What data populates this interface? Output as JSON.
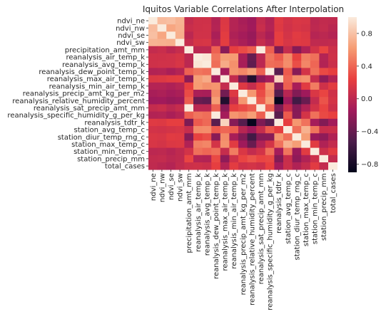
{
  "chart_data": {
    "type": "heatmap",
    "title": "Iquitos Variable Correlations After Interpolation",
    "variables": [
      "ndvi_ne",
      "ndvi_nw",
      "ndvi_se",
      "ndvi_sw",
      "precipitation_amt_mm",
      "reanalysis_air_temp_k",
      "reanalysis_avg_temp_k",
      "reanalysis_dew_point_temp_k",
      "reanalysis_max_air_temp_k",
      "reanalysis_min_air_temp_k",
      "reanalysis_precip_amt_kg_per_m2",
      "reanalysis_relative_humidity_percent",
      "reanalysis_sat_precip_amt_mm",
      "reanalysis_specific_humidity_g_per_kg",
      "reanalysis_tdtr_k",
      "station_avg_temp_c",
      "station_diur_temp_rng_c",
      "station_max_temp_c",
      "station_min_temp_c",
      "station_precip_mm",
      "total_cases"
    ],
    "matrix": [
      [
        1.0,
        0.77,
        0.79,
        0.73,
        0.04,
        0.1,
        0.1,
        -0.05,
        0.17,
        -0.04,
        -0.1,
        -0.15,
        0.04,
        -0.05,
        0.19,
        0.12,
        0.16,
        0.15,
        0.0,
        0.03,
        0.02
      ],
      [
        0.77,
        1.0,
        0.67,
        0.72,
        0.07,
        0.1,
        0.11,
        -0.04,
        0.18,
        -0.04,
        -0.08,
        -0.14,
        0.07,
        -0.04,
        0.18,
        0.11,
        0.15,
        0.13,
        0.01,
        0.04,
        -0.01
      ],
      [
        0.79,
        0.67,
        1.0,
        0.71,
        0.0,
        0.11,
        0.11,
        -0.09,
        0.21,
        -0.07,
        -0.12,
        -0.18,
        0.0,
        -0.09,
        0.23,
        0.13,
        0.2,
        0.17,
        -0.03,
        0.0,
        -0.04
      ],
      [
        0.73,
        0.72,
        0.71,
        1.0,
        0.05,
        0.14,
        0.15,
        -0.04,
        0.22,
        -0.03,
        -0.09,
        -0.16,
        0.05,
        -0.04,
        0.23,
        0.15,
        0.19,
        0.18,
        0.02,
        0.02,
        0.03
      ],
      [
        0.04,
        0.07,
        0.0,
        0.05,
        1.0,
        0.0,
        0.0,
        0.38,
        -0.24,
        0.23,
        0.29,
        0.36,
        1.0,
        0.37,
        -0.3,
        0.05,
        -0.26,
        -0.06,
        0.12,
        0.26,
        0.09
      ],
      [
        0.1,
        0.1,
        0.11,
        0.14,
        0.0,
        1.0,
        0.97,
        0.46,
        0.63,
        0.62,
        -0.09,
        -0.4,
        0.0,
        0.46,
        0.35,
        0.55,
        0.25,
        0.5,
        0.44,
        -0.04,
        0.1
      ],
      [
        0.1,
        0.11,
        0.11,
        0.15,
        0.0,
        0.97,
        1.0,
        0.43,
        0.69,
        0.57,
        -0.1,
        -0.43,
        0.0,
        0.43,
        0.41,
        0.56,
        0.3,
        0.53,
        0.4,
        -0.05,
        0.08
      ],
      [
        -0.05,
        -0.04,
        -0.09,
        -0.04,
        0.38,
        0.46,
        0.43,
        1.0,
        -0.12,
        0.59,
        0.54,
        0.63,
        0.38,
        1.0,
        -0.46,
        0.35,
        -0.25,
        0.13,
        0.44,
        0.28,
        0.23
      ],
      [
        0.17,
        0.18,
        0.21,
        0.22,
        -0.24,
        0.63,
        0.69,
        -0.12,
        1.0,
        0.04,
        -0.35,
        -0.74,
        -0.24,
        -0.12,
        0.89,
        0.4,
        0.55,
        0.58,
        0.05,
        -0.22,
        -0.05
      ],
      [
        -0.04,
        -0.04,
        -0.07,
        -0.03,
        0.23,
        0.62,
        0.57,
        0.59,
        0.04,
        1.0,
        0.18,
        0.05,
        0.23,
        0.59,
        -0.26,
        0.37,
        -0.1,
        0.2,
        0.49,
        0.1,
        0.21
      ],
      [
        -0.1,
        -0.08,
        -0.12,
        -0.09,
        0.29,
        -0.09,
        -0.1,
        0.54,
        -0.35,
        0.18,
        1.0,
        0.6,
        0.29,
        0.54,
        -0.48,
        -0.02,
        -0.28,
        -0.15,
        0.16,
        0.26,
        0.1
      ],
      [
        -0.15,
        -0.14,
        -0.18,
        -0.16,
        0.36,
        -0.4,
        -0.43,
        0.63,
        -0.74,
        0.05,
        0.6,
        1.0,
        0.36,
        0.63,
        -0.88,
        -0.15,
        -0.57,
        -0.39,
        0.04,
        0.32,
        0.13
      ],
      [
        0.04,
        0.07,
        0.0,
        0.05,
        1.0,
        0.0,
        0.0,
        0.38,
        -0.24,
        0.23,
        0.29,
        0.36,
        1.0,
        0.37,
        -0.3,
        0.05,
        -0.26,
        -0.06,
        0.12,
        0.26,
        0.09
      ],
      [
        -0.05,
        -0.04,
        -0.09,
        -0.04,
        0.37,
        0.46,
        0.43,
        1.0,
        -0.12,
        0.59,
        0.54,
        0.63,
        0.37,
        1.0,
        -0.46,
        0.35,
        -0.25,
        0.13,
        0.44,
        0.28,
        0.24
      ],
      [
        0.19,
        0.18,
        0.23,
        0.23,
        -0.3,
        0.35,
        0.41,
        -0.46,
        0.89,
        -0.26,
        -0.48,
        -0.88,
        -0.3,
        -0.46,
        1.0,
        0.23,
        0.6,
        0.45,
        -0.12,
        -0.28,
        -0.13
      ],
      [
        0.12,
        0.11,
        0.13,
        0.15,
        0.05,
        0.55,
        0.56,
        0.35,
        0.4,
        0.37,
        -0.02,
        -0.15,
        0.05,
        0.35,
        0.23,
        1.0,
        0.43,
        0.72,
        0.46,
        0.07,
        0.08
      ],
      [
        0.16,
        0.15,
        0.2,
        0.19,
        -0.26,
        0.25,
        0.3,
        -0.25,
        0.55,
        -0.1,
        -0.28,
        -0.57,
        -0.26,
        -0.25,
        0.6,
        0.43,
        1.0,
        0.63,
        -0.17,
        -0.22,
        -0.06
      ],
      [
        0.15,
        0.13,
        0.17,
        0.18,
        -0.06,
        0.5,
        0.53,
        0.13,
        0.58,
        0.2,
        -0.15,
        -0.39,
        -0.06,
        0.13,
        0.45,
        0.72,
        0.63,
        1.0,
        0.2,
        -0.06,
        0.04
      ],
      [
        0.0,
        0.01,
        -0.03,
        0.02,
        0.12,
        0.44,
        0.4,
        0.44,
        0.05,
        0.49,
        0.16,
        0.04,
        0.12,
        0.44,
        -0.12,
        0.46,
        -0.17,
        0.2,
        1.0,
        0.09,
        0.2
      ],
      [
        0.03,
        0.04,
        0.0,
        0.02,
        0.26,
        -0.04,
        -0.05,
        0.28,
        -0.22,
        0.1,
        0.26,
        0.32,
        0.26,
        0.28,
        -0.28,
        0.07,
        -0.22,
        -0.06,
        0.09,
        1.0,
        0.04
      ],
      [
        0.02,
        -0.01,
        -0.04,
        0.03,
        0.09,
        0.1,
        0.08,
        0.23,
        -0.05,
        0.21,
        0.1,
        0.13,
        0.09,
        0.24,
        -0.13,
        0.08,
        -0.06,
        0.04,
        0.2,
        0.04,
        1.0
      ]
    ],
    "vmin": -0.9,
    "vmax": 1.0,
    "colormap": [
      "#03051a",
      "#4c1d4b",
      "#a11a5b",
      "#e83f3f",
      "#f69c73",
      "#faebdd"
    ],
    "colorbar_ticks": [
      -0.8,
      -0.4,
      0.0,
      0.4,
      0.8
    ],
    "colorbar_tick_labels": [
      "−0.8",
      "−0.4",
      "0.0",
      "0.4",
      "0.8"
    ],
    "grid": false,
    "legend": "colorbar-right"
  }
}
